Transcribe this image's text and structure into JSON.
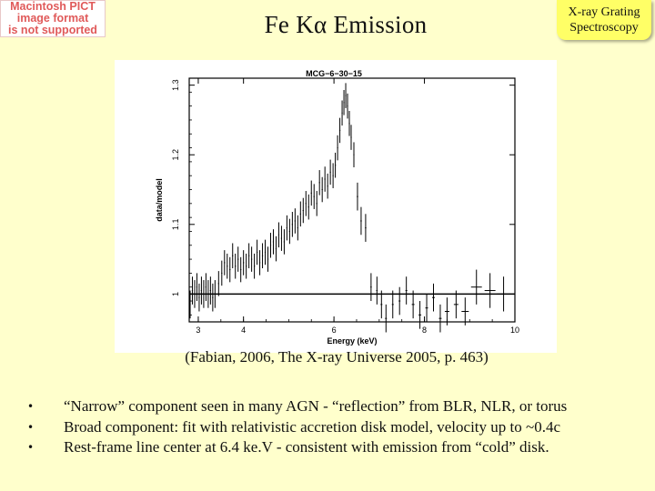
{
  "placeholder": {
    "lines": [
      "Macintosh PICT",
      "image format",
      "is not supported"
    ]
  },
  "slide": {
    "title": "Fe Kα Emission",
    "badge_lines": [
      "X-ray Grating",
      "Spectroscopy"
    ],
    "caption": "(Fabian, 2006, The X-ray Universe 2005, p. 463)",
    "bullets": [
      "“Narrow” component seen in many AGN - “reflection” from BLR, NLR, or torus",
      "Broad component: fit with relativistic accretion disk model, velocity up to ~0.4c",
      "Rest-frame line center at 6.4 ke.V - consistent with emission from “cold” disk."
    ],
    "bullet_glyph": "•"
  },
  "chart_data": {
    "type": "scatter",
    "title": "MCG−6−30−15",
    "xlabel": "Energy (keV)",
    "ylabel": "data/model",
    "xlim": [
      2.8,
      10
    ],
    "ylim": [
      0.96,
      1.31
    ],
    "xticks": [
      3,
      4,
      6,
      8,
      10
    ],
    "xtick_labels": [
      "3",
      "4",
      "6",
      "8",
      "10"
    ],
    "yticks": [
      1,
      1.1,
      1.2,
      1.3
    ],
    "ytick_labels": [
      "1",
      "1.1",
      "1.2",
      "1.3"
    ],
    "reference_line": 1.0,
    "series": [
      {
        "points": [
          [
            2.82,
            0.985,
            0.012,
            0.02
          ],
          [
            2.87,
            1.005,
            0.012,
            0.02
          ],
          [
            2.92,
            1.0,
            0.012,
            0.02
          ],
          [
            2.97,
            1.01,
            0.012,
            0.02
          ],
          [
            3.02,
            0.995,
            0.012,
            0.02
          ],
          [
            3.07,
            1.005,
            0.012,
            0.02
          ],
          [
            3.12,
            1.0,
            0.012,
            0.02
          ],
          [
            3.17,
            1.01,
            0.012,
            0.02
          ],
          [
            3.22,
            1.0,
            0.012,
            0.02
          ],
          [
            3.27,
            1.005,
            0.012,
            0.02
          ],
          [
            3.32,
            0.995,
            0.012,
            0.02
          ],
          [
            3.37,
            1.0,
            0.012,
            0.02
          ],
          [
            3.45,
            1.015,
            0.012,
            0.018
          ],
          [
            3.52,
            1.03,
            0.012,
            0.018
          ],
          [
            3.58,
            1.045,
            0.012,
            0.018
          ],
          [
            3.64,
            1.04,
            0.012,
            0.018
          ],
          [
            3.7,
            1.035,
            0.012,
            0.018
          ],
          [
            3.76,
            1.055,
            0.012,
            0.018
          ],
          [
            3.82,
            1.04,
            0.012,
            0.018
          ],
          [
            3.88,
            1.05,
            0.012,
            0.018
          ],
          [
            3.94,
            1.035,
            0.012,
            0.018
          ],
          [
            4.0,
            1.045,
            0.012,
            0.018
          ],
          [
            4.06,
            1.04,
            0.012,
            0.018
          ],
          [
            4.12,
            1.055,
            0.012,
            0.018
          ],
          [
            4.18,
            1.05,
            0.012,
            0.018
          ],
          [
            4.24,
            1.04,
            0.012,
            0.018
          ],
          [
            4.3,
            1.06,
            0.012,
            0.018
          ],
          [
            4.36,
            1.045,
            0.012,
            0.018
          ],
          [
            4.42,
            1.055,
            0.012,
            0.018
          ],
          [
            4.48,
            1.06,
            0.012,
            0.018
          ],
          [
            4.54,
            1.05,
            0.012,
            0.018
          ],
          [
            4.6,
            1.07,
            0.012,
            0.018
          ],
          [
            4.66,
            1.075,
            0.012,
            0.018
          ],
          [
            4.72,
            1.065,
            0.012,
            0.018
          ],
          [
            4.78,
            1.085,
            0.012,
            0.018
          ],
          [
            4.84,
            1.08,
            0.012,
            0.018
          ],
          [
            4.9,
            1.075,
            0.012,
            0.018
          ],
          [
            4.96,
            1.095,
            0.012,
            0.018
          ],
          [
            5.02,
            1.09,
            0.012,
            0.018
          ],
          [
            5.08,
            1.1,
            0.012,
            0.018
          ],
          [
            5.14,
            1.105,
            0.012,
            0.018
          ],
          [
            5.2,
            1.095,
            0.012,
            0.018
          ],
          [
            5.26,
            1.115,
            0.012,
            0.018
          ],
          [
            5.32,
            1.12,
            0.012,
            0.018
          ],
          [
            5.38,
            1.13,
            0.012,
            0.018
          ],
          [
            5.44,
            1.125,
            0.012,
            0.018
          ],
          [
            5.5,
            1.145,
            0.012,
            0.018
          ],
          [
            5.56,
            1.14,
            0.012,
            0.018
          ],
          [
            5.62,
            1.13,
            0.012,
            0.018
          ],
          [
            5.68,
            1.16,
            0.012,
            0.018
          ],
          [
            5.74,
            1.15,
            0.012,
            0.018
          ],
          [
            5.8,
            1.165,
            0.012,
            0.018
          ],
          [
            5.86,
            1.155,
            0.012,
            0.018
          ],
          [
            5.92,
            1.175,
            0.012,
            0.018
          ],
          [
            5.98,
            1.17,
            0.012,
            0.018
          ],
          [
            6.03,
            1.185,
            0.012,
            0.018
          ],
          [
            6.08,
            1.21,
            0.012,
            0.018
          ],
          [
            6.13,
            1.235,
            0.012,
            0.018
          ],
          [
            6.18,
            1.26,
            0.012,
            0.018
          ],
          [
            6.22,
            1.275,
            0.012,
            0.018
          ],
          [
            6.26,
            1.285,
            0.012,
            0.018
          ],
          [
            6.3,
            1.27,
            0.012,
            0.018
          ],
          [
            6.34,
            1.245,
            0.012,
            0.018
          ],
          [
            6.38,
            1.225,
            0.012,
            0.018
          ],
          [
            6.44,
            1.2,
            0.012,
            0.018
          ],
          [
            6.52,
            1.14,
            0.015,
            0.02
          ],
          [
            6.6,
            1.105,
            0.015,
            0.02
          ],
          [
            6.7,
            1.095,
            0.015,
            0.02
          ],
          [
            6.82,
            1.01,
            0.015,
            0.02
          ],
          [
            6.95,
            1.005,
            0.015,
            0.02
          ],
          [
            7.05,
            0.985,
            0.02,
            0.02
          ],
          [
            7.15,
            0.965,
            0.02,
            0.02
          ],
          [
            7.3,
            0.985,
            0.02,
            0.02
          ],
          [
            7.45,
            0.99,
            0.02,
            0.02
          ],
          [
            7.6,
            1.005,
            0.02,
            0.02
          ],
          [
            7.75,
            0.985,
            0.03,
            0.02
          ],
          [
            7.9,
            0.97,
            0.03,
            0.02
          ],
          [
            8.05,
            0.98,
            0.03,
            0.02
          ],
          [
            8.2,
            0.995,
            0.03,
            0.02
          ],
          [
            8.35,
            0.965,
            0.03,
            0.02
          ],
          [
            8.5,
            0.975,
            0.05,
            0.02
          ],
          [
            8.7,
            0.985,
            0.05,
            0.02
          ],
          [
            8.9,
            0.975,
            0.08,
            0.02
          ],
          [
            9.15,
            1.01,
            0.12,
            0.025
          ],
          [
            9.45,
            1.005,
            0.12,
            0.025
          ],
          [
            9.75,
            1.0,
            0.15,
            0.025
          ]
        ]
      }
    ]
  }
}
